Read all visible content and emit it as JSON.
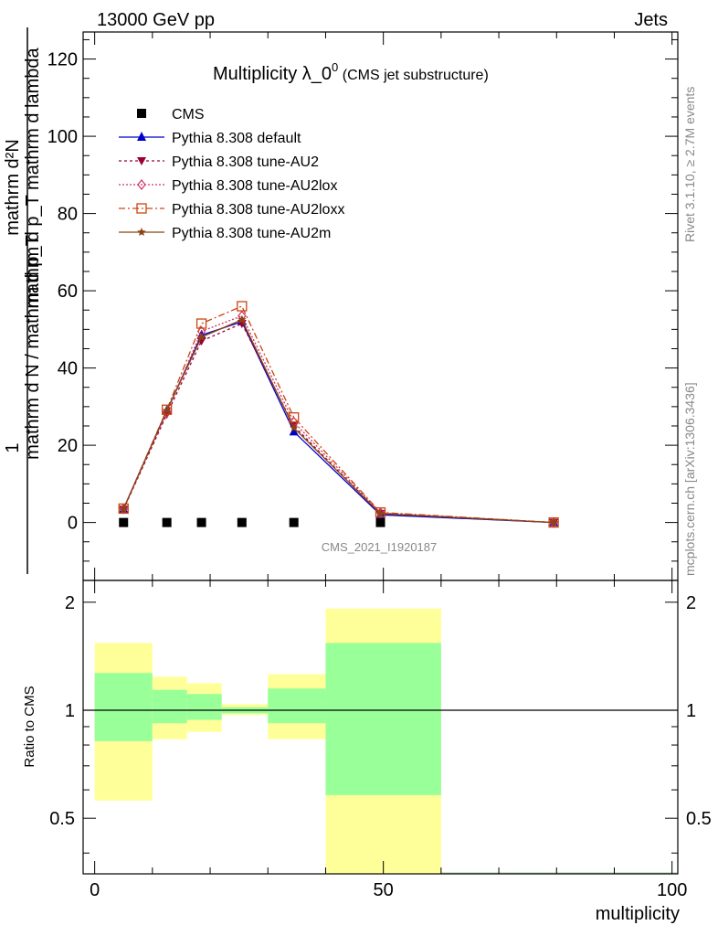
{
  "header": {
    "left": "13000 GeV pp",
    "right": "Jets"
  },
  "side": {
    "rivet": "Rivet 3.1.10, ≥ 2.7M events",
    "mcplots": "mcplots.cern.ch [arXiv:1306.3436]"
  },
  "watermark": "CMS_2021_I1920187",
  "chart_data": [
    {
      "type": "line",
      "title": "Multiplicity λ_0",
      "title_sup": "0",
      "subtitle": "(CMS jet substructure)",
      "ylabel": {
        "numerator": "mathrm d²N",
        "denominator": "mathrm d p_T mathrm d lambda",
        "prefix": "1",
        "prefix_den": "mathrm d N / mathrm d p_T"
      },
      "xlim": [
        -2,
        101
      ],
      "ylim": [
        -15,
        127
      ],
      "yticks": [
        0,
        20,
        40,
        60,
        80,
        100,
        120
      ],
      "series": [
        {
          "name": "CMS",
          "color": "#000000",
          "marker": "square",
          "x": [
            5,
            12.5,
            18.5,
            25.5,
            34.5,
            49.5
          ],
          "values": [
            0,
            0,
            0,
            0,
            0,
            0
          ]
        },
        {
          "name": "Pythia 8.308 default",
          "color": "#0000cc",
          "marker": "triangle-up",
          "dash": "",
          "x": [
            5,
            12.5,
            18.5,
            25.5,
            34.5,
            49.5,
            79.5
          ],
          "values": [
            3.5,
            29,
            48.5,
            52,
            23.5,
            2,
            0
          ]
        },
        {
          "name": "Pythia 8.308 tune-AU2",
          "color": "#990033",
          "marker": "triangle-down",
          "dash": "3,3",
          "x": [
            5,
            12.5,
            18.5,
            25.5,
            34.5,
            49.5,
            79.5
          ],
          "values": [
            3.4,
            28,
            47,
            51.5,
            25,
            2.3,
            0
          ]
        },
        {
          "name": "Pythia 8.308 tune-AU2lox",
          "color": "#cc3366",
          "marker": "diamond",
          "dash": "2,2",
          "x": [
            5,
            12.5,
            18.5,
            25.5,
            34.5,
            49.5,
            79.5
          ],
          "values": [
            3.5,
            28.5,
            49.5,
            53.5,
            26,
            2.5,
            0
          ]
        },
        {
          "name": "Pythia 8.308 tune-AU2loxx",
          "color": "#cc4411",
          "marker": "square-open",
          "dash": "7,3,2,3",
          "x": [
            5,
            12.5,
            18.5,
            25.5,
            34.5,
            49.5,
            79.5
          ],
          "values": [
            3.6,
            29.2,
            51.5,
            56,
            27.2,
            2.6,
            0
          ]
        },
        {
          "name": "Pythia 8.308 tune-AU2m",
          "color": "#8b4513",
          "marker": "star",
          "dash": "",
          "x": [
            5,
            12.5,
            18.5,
            25.5,
            34.5,
            49.5,
            79.5
          ],
          "values": [
            3.5,
            29,
            48,
            52.5,
            24.5,
            2.3,
            0
          ]
        }
      ]
    },
    {
      "type": "area",
      "ylabel": "Ratio to CMS",
      "xlabel": "multiplicity",
      "xlim": [
        -2,
        101
      ],
      "ylim": [
        0.35,
        2.3
      ],
      "xticks": [
        0,
        50,
        100
      ],
      "yticks": [
        0.5,
        1,
        2
      ],
      "reference_line": 1,
      "bands": [
        {
          "x0": 0,
          "x1": 10,
          "inner": [
            0.82,
            1.27
          ],
          "outer": [
            0.56,
            1.54
          ]
        },
        {
          "x0": 10,
          "x1": 16,
          "inner": [
            0.92,
            1.14
          ],
          "outer": [
            0.83,
            1.24
          ]
        },
        {
          "x0": 16,
          "x1": 22,
          "inner": [
            0.94,
            1.11
          ],
          "outer": [
            0.87,
            1.19
          ]
        },
        {
          "x0": 22,
          "x1": 30,
          "inner": [
            0.98,
            1.02
          ],
          "outer": [
            0.97,
            1.04
          ]
        },
        {
          "x0": 30,
          "x1": 40,
          "inner": [
            0.92,
            1.15
          ],
          "outer": [
            0.83,
            1.26
          ]
        },
        {
          "x0": 40,
          "x1": 60,
          "inner": [
            0.58,
            1.54
          ],
          "outer": [
            0.3,
            1.92
          ]
        },
        {
          "x0": 60,
          "x1": 100,
          "inner": [
            0.35,
            0.35
          ],
          "outer": [
            0.35,
            0.35
          ]
        }
      ],
      "inner_color": "#99ff99",
      "outer_color": "#ffff99"
    }
  ]
}
